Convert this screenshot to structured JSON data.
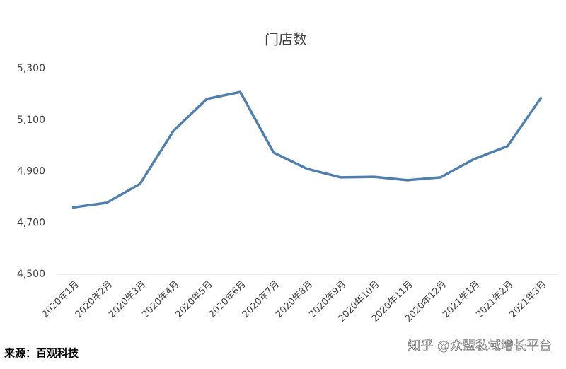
{
  "chart_data": {
    "type": "line",
    "title": "门店数",
    "categories": [
      "2020年1月",
      "2020年2月",
      "2020年3月",
      "2020年4月",
      "2020年5月",
      "2020年6月",
      "2020年7月",
      "2020年8月",
      "2020年9月",
      "2020年10月",
      "2020年11月",
      "2020年12月",
      "2021年1月",
      "2021年2月",
      "2021年3月"
    ],
    "series": [
      {
        "name": "门店数",
        "color": "#4f7fb0",
        "values": [
          4760,
          4778,
          4852,
          5058,
          5182,
          5209,
          4973,
          4910,
          4877,
          4879,
          4866,
          4877,
          4948,
          4998,
          5185
        ]
      }
    ],
    "ylim": [
      4500,
      5300
    ],
    "yticks": [
      {
        "value": 4500,
        "label": "4,500"
      },
      {
        "value": 4700,
        "label": "4,700"
      },
      {
        "value": 4900,
        "label": "4,900"
      },
      {
        "value": 5100,
        "label": "5,100"
      },
      {
        "value": 5300,
        "label": "5,300"
      }
    ],
    "grid": false,
    "source": "来源：百观科技",
    "watermark": "知乎 @众盟私域增长平台"
  }
}
